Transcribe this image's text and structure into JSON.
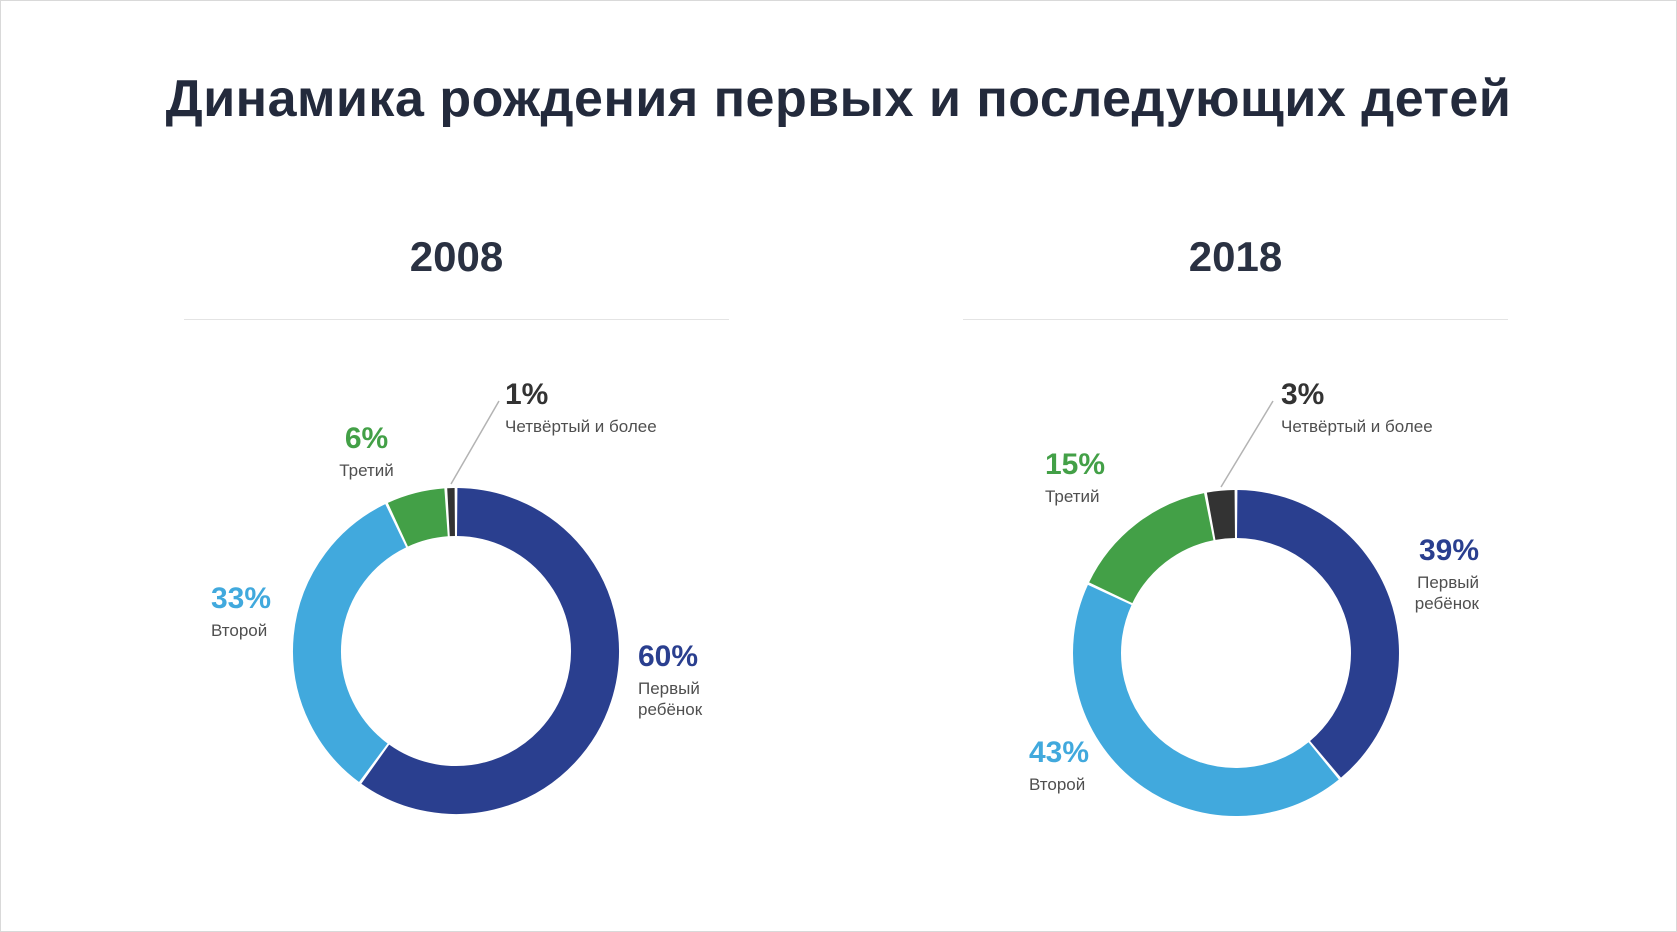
{
  "page": {
    "title": "Динамика рождения первых и последующих детей",
    "units": "%"
  },
  "colors": {
    "first_child": "#2a3f8f",
    "second_child": "#41a9dd",
    "third_child": "#43a047",
    "fourth_plus": "#3a3a3a",
    "leader_line": "#b3b3b3",
    "heading": "#232a3c",
    "sublabel": "#4f4f4f"
  },
  "chart_data": [
    {
      "type": "pie",
      "subtype": "donut",
      "title": "2008",
      "legend_position": "around",
      "categories": [
        "Первый ребёнок",
        "Второй",
        "Третий",
        "Четвёртый и более"
      ],
      "values": [
        60,
        33,
        6,
        1
      ],
      "slices": [
        {
          "label": "Первый ребёнок",
          "value": 60,
          "value_text": "60%",
          "color": "#2a3f8f"
        },
        {
          "label": "Второй",
          "value": 33,
          "value_text": "33%",
          "color": "#41a9dd"
        },
        {
          "label": "Третий",
          "value": 6,
          "value_text": "6%",
          "color": "#43a047"
        },
        {
          "label": "Четвёртый и более",
          "value": 1,
          "value_text": "1%",
          "color": "#333333"
        }
      ]
    },
    {
      "type": "pie",
      "subtype": "donut",
      "title": "2018",
      "legend_position": "around",
      "categories": [
        "Первый ребёнок",
        "Второй",
        "Третий",
        "Четвёртый и более"
      ],
      "values": [
        39,
        43,
        15,
        3
      ],
      "slices": [
        {
          "label": "Первый ребёнок",
          "value": 39,
          "value_text": "39%",
          "color": "#2a3f8f"
        },
        {
          "label": "Второй",
          "value": 43,
          "value_text": "43%",
          "color": "#41a9dd"
        },
        {
          "label": "Третий",
          "value": 15,
          "value_text": "15%",
          "color": "#43a047"
        },
        {
          "label": "Четвёртый и более",
          "value": 3,
          "value_text": "3%",
          "color": "#333333"
        }
      ]
    }
  ]
}
